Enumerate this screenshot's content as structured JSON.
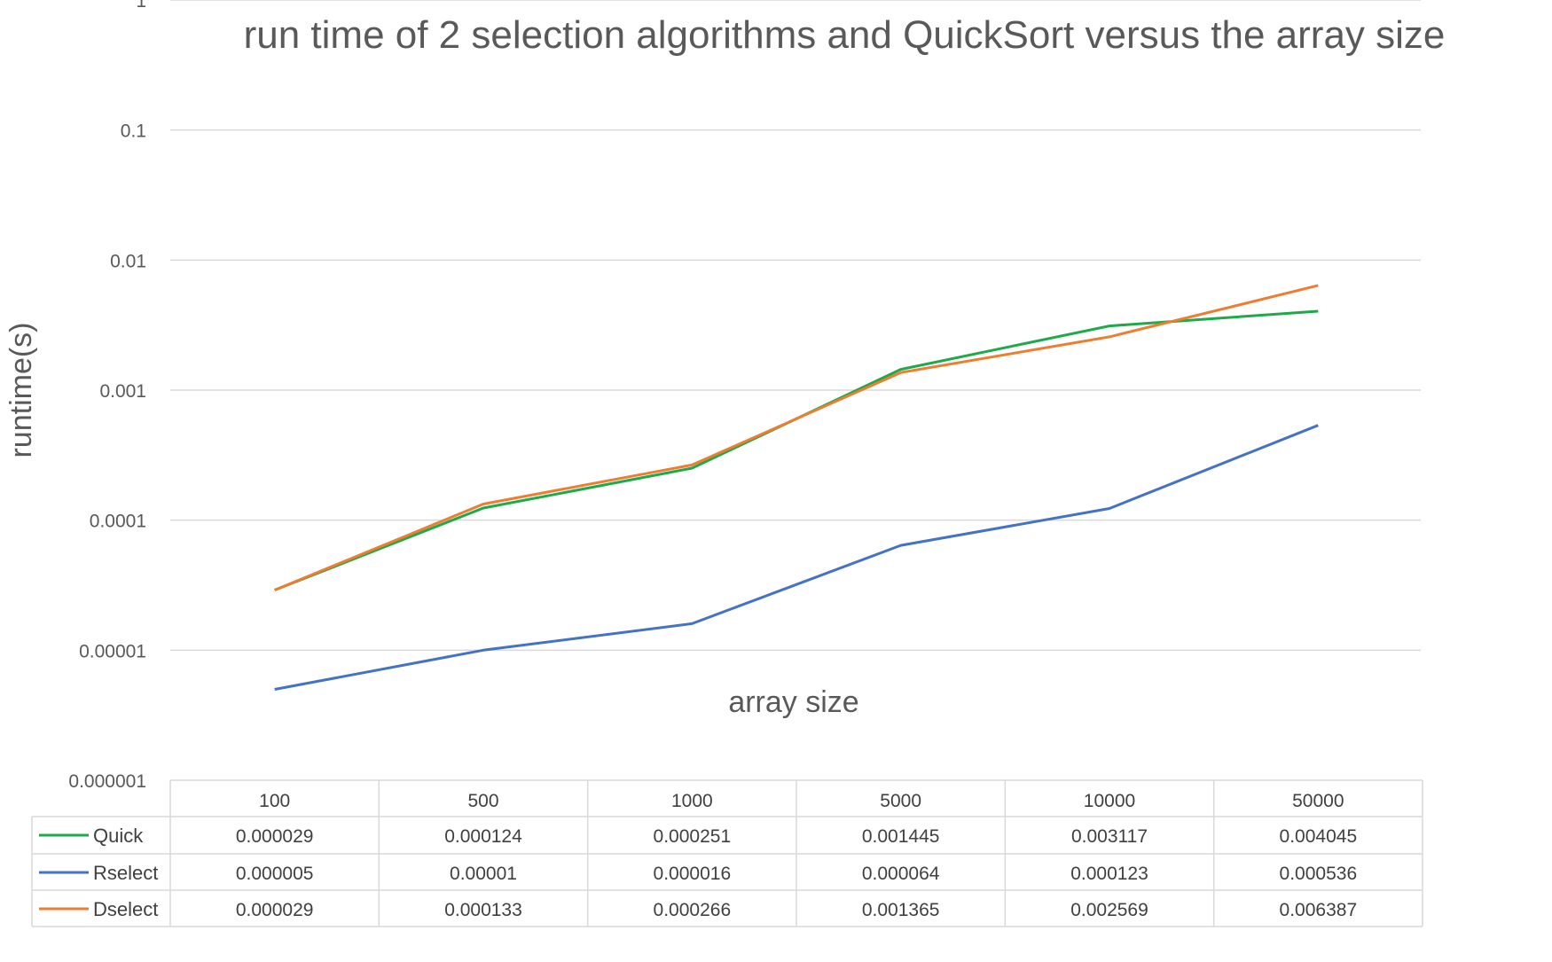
{
  "chart_data": {
    "type": "line",
    "title": "run time of 2 selection algorithms and QuickSort versus the array size",
    "xlabel": "array size",
    "ylabel": "runtime(s)",
    "y_scale": "log",
    "ylim": [
      1e-06,
      1
    ],
    "y_ticks": [
      "0.000001",
      "0.00001",
      "0.0001",
      "0.001",
      "0.01",
      "0.1",
      "1"
    ],
    "grid": true,
    "legend": "data table below plot",
    "categories": [
      "100",
      "500",
      "1000",
      "5000",
      "10000",
      "50000"
    ],
    "series": [
      {
        "name": "Quick",
        "color": "#1faa4a",
        "values": [
          2.9e-05,
          0.000124,
          0.000251,
          0.001445,
          0.003117,
          0.004045
        ],
        "labels": [
          "0.000029",
          "0.000124",
          "0.000251",
          "0.001445",
          "0.003117",
          "0.004045"
        ]
      },
      {
        "name": "Rselect",
        "color": "#4472c4",
        "values": [
          5e-06,
          1e-05,
          1.6e-05,
          6.4e-05,
          0.000123,
          0.000536
        ],
        "labels": [
          "0.000005",
          "0.00001",
          "0.000016",
          "0.000064",
          "0.000123",
          "0.000536"
        ]
      },
      {
        "name": "Dselect",
        "color": "#ed7d31",
        "values": [
          2.9e-05,
          0.000133,
          0.000266,
          0.001365,
          0.002569,
          0.006387
        ],
        "labels": [
          "0.000029",
          "0.000133",
          "0.000266",
          "0.001365",
          "0.002569",
          "0.006387"
        ]
      }
    ]
  }
}
